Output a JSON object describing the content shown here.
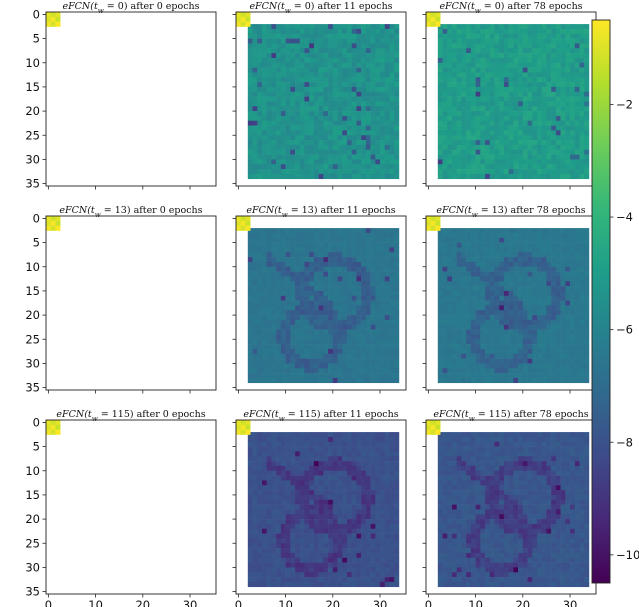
{
  "chart_data": {
    "type": "heatmap",
    "layout": {
      "rows": 3,
      "cols": 3
    },
    "colormap": "viridis",
    "colorbar": {
      "min": -10.5,
      "max": -0.5,
      "ticks": [
        -2,
        -4,
        -6,
        -8,
        -10
      ],
      "tick_labels": [
        "−2",
        "−4",
        "−6",
        "−8",
        "−10"
      ]
    },
    "axes": {
      "xlim": [
        -0.5,
        35.5
      ],
      "ylim": [
        35.5,
        -0.5
      ],
      "xticks": [
        0,
        10,
        20,
        30
      ],
      "xtick_labels": [
        "0",
        "10",
        "20",
        "30"
      ],
      "yticks": [
        0,
        5,
        10,
        15,
        20,
        25,
        30,
        35
      ],
      "ytick_labels": [
        "0",
        "5",
        "10",
        "15",
        "20",
        "25",
        "30",
        "35"
      ],
      "shared": true
    },
    "corner_patch": {
      "size": 3,
      "values": [
        [
          -0.8,
          -1.2,
          -0.9
        ],
        [
          -1.0,
          -0.6,
          -1.3
        ],
        [
          -0.7,
          -1.1,
          -0.5
        ]
      ]
    },
    "image_region": {
      "x_range": [
        2,
        33
      ],
      "y_range": [
        2,
        33
      ]
    },
    "panels": [
      {
        "title_a": "eFCN",
        "title_b": "(t",
        "title_sub": "w",
        "title_c": " = 0)",
        "title_d": " after 0 epochs",
        "base": null,
        "spread": 0,
        "pattern": "none"
      },
      {
        "title_a": "eFCN",
        "title_b": "(t",
        "title_sub": "w",
        "title_c": " = 0)",
        "title_d": " after 11 epochs",
        "base": -5.4,
        "spread": 0.9,
        "pattern": "noise"
      },
      {
        "title_a": "eFCN",
        "title_b": "(t",
        "title_sub": "w",
        "title_c": " = 0)",
        "title_d": " after 78 epochs",
        "base": -5.0,
        "spread": 0.85,
        "pattern": "noise"
      },
      {
        "title_a": "eFCN",
        "title_b": "(t",
        "title_sub": "w",
        "title_c": " = 13)",
        "title_d": " after 0 epochs",
        "base": null,
        "spread": 0,
        "pattern": "none"
      },
      {
        "title_a": "eFCN",
        "title_b": "(t",
        "title_sub": "w",
        "title_c": " = 13)",
        "title_d": " after 11 epochs",
        "base": -6.6,
        "spread": 0.35,
        "pattern": "digit"
      },
      {
        "title_a": "eFCN",
        "title_b": "(t",
        "title_sub": "w",
        "title_c": " = 13)",
        "title_d": " after 78 epochs",
        "base": -6.5,
        "spread": 0.3,
        "pattern": "digit"
      },
      {
        "title_a": "eFCN",
        "title_b": "(t",
        "title_sub": "w",
        "title_c": " = 115)",
        "title_d": " after 0 epochs",
        "base": null,
        "spread": 0,
        "pattern": "none"
      },
      {
        "title_a": "eFCN",
        "title_b": "(t",
        "title_sub": "w",
        "title_c": " = 115)",
        "title_d": " after 11 epochs",
        "base": -8.0,
        "spread": 0.45,
        "pattern": "digit"
      },
      {
        "title_a": "eFCN",
        "title_b": "(t",
        "title_sub": "w",
        "title_c": " = 115)",
        "title_d": " after 78 epochs",
        "base": -7.8,
        "spread": 0.45,
        "pattern": "digit"
      }
    ]
  }
}
